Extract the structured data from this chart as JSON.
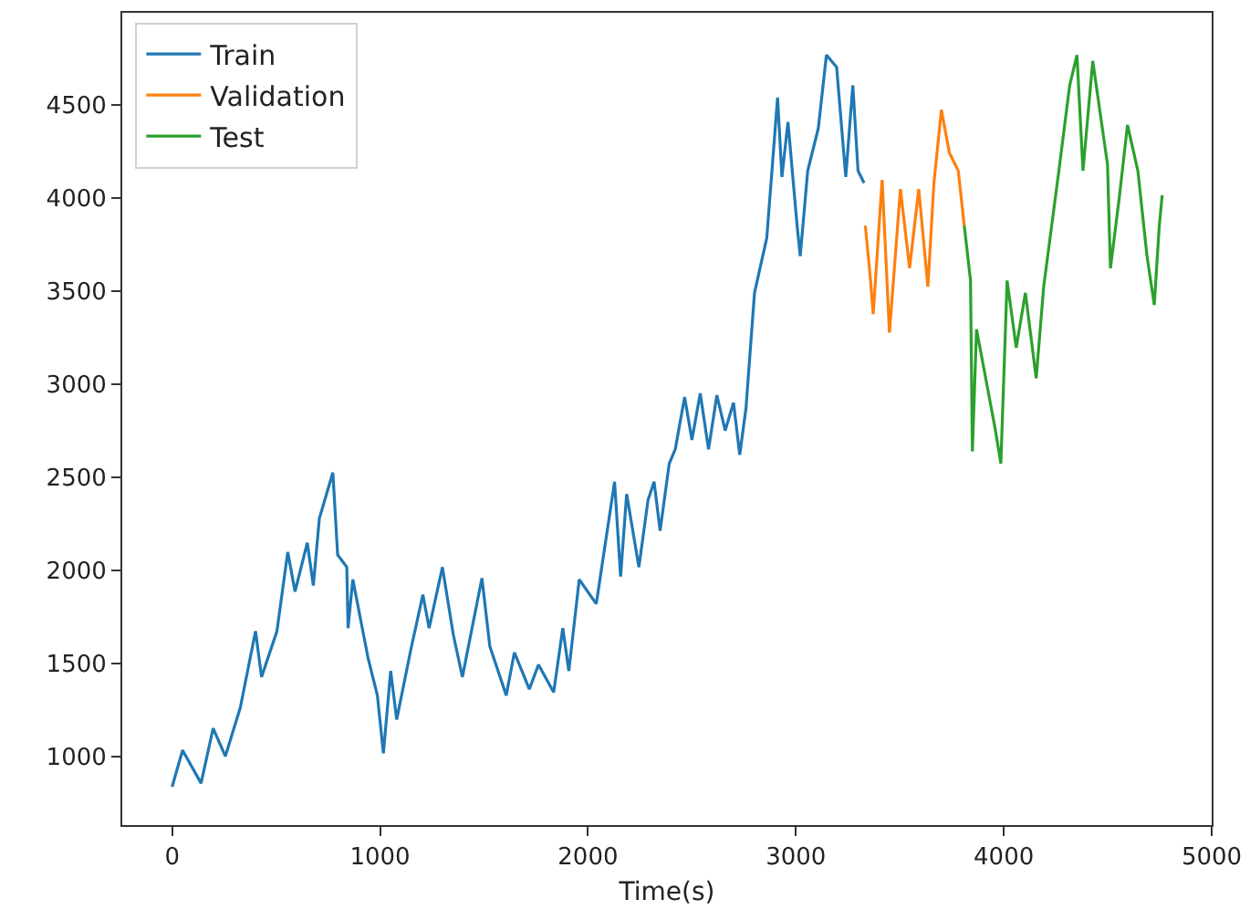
{
  "chart_data": {
    "type": "line",
    "xlabel": "Time(s)",
    "xlim": [
      -240,
      5000
    ],
    "xticks": [
      0,
      1000,
      2000,
      3000,
      4000,
      5000
    ],
    "ylim": [
      630,
      4995
    ],
    "yticks": [
      1000,
      1500,
      2000,
      2500,
      3000,
      3500,
      4000,
      4500
    ],
    "grid": false,
    "legend": "top left",
    "marker": "none",
    "line_style": "solid",
    "series": [
      {
        "name": "Train",
        "color": "#1f77b4",
        "x": [
          0,
          50,
          139,
          197,
          256,
          328,
          401,
          430,
          504,
          556,
          591,
          650,
          679,
          708,
          773,
          796,
          840,
          846,
          869,
          943,
          987,
          1016,
          1051,
          1080,
          1148,
          1206,
          1236,
          1300,
          1352,
          1396,
          1490,
          1528,
          1607,
          1646,
          1718,
          1762,
          1835,
          1879,
          1908,
          1958,
          2040,
          2128,
          2157,
          2186,
          2245,
          2289,
          2318,
          2347,
          2391,
          2420,
          2465,
          2500,
          2540,
          2580,
          2620,
          2660,
          2700,
          2730,
          2760,
          2801,
          2860,
          2912,
          2933,
          2962,
          3006,
          3021,
          3057,
          3108,
          3147,
          3196,
          3240,
          3274,
          3299,
          3328
        ],
        "values": [
          836,
          1032,
          855,
          1150,
          1000,
          1262,
          1672,
          1426,
          1672,
          2097,
          1885,
          2147,
          1917,
          2278,
          2524,
          2082,
          2016,
          1688,
          1950,
          1524,
          1327,
          1016,
          1458,
          1197,
          1573,
          1868,
          1688,
          2016,
          1655,
          1426,
          1957,
          1590,
          1327,
          1557,
          1360,
          1492,
          1344,
          1688,
          1458,
          1950,
          1819,
          2475,
          1966,
          2409,
          2016,
          2377,
          2475,
          2212,
          2573,
          2650,
          2930,
          2700,
          2950,
          2650,
          2940,
          2750,
          2900,
          2620,
          2870,
          3490,
          3785,
          4540,
          4113,
          4408,
          3851,
          3687,
          4146,
          4375,
          4768,
          4703,
          4113,
          4605,
          4146,
          4080
        ]
      },
      {
        "name": "Validation",
        "color": "#ff7f0e",
        "x": [
          3334,
          3357,
          3372,
          3415,
          3450,
          3503,
          3547,
          3591,
          3635,
          3664,
          3700,
          3738,
          3781,
          3810
        ],
        "values": [
          3851,
          3584,
          3376,
          4097,
          3277,
          4048,
          3622,
          4048,
          3523,
          4080,
          4474,
          4244,
          4146,
          3851
        ]
      },
      {
        "name": "Test",
        "color": "#2ca02c",
        "x": [
          3810,
          3840,
          3849,
          3869,
          3913,
          3957,
          3986,
          4016,
          4060,
          4104,
          4156,
          4192,
          4265,
          4317,
          4352,
          4381,
          4428,
          4499,
          4513,
          4557,
          4595,
          4645,
          4689,
          4724,
          4748,
          4762
        ],
        "values": [
          3851,
          3556,
          2638,
          3294,
          3031,
          2769,
          2573,
          3556,
          3195,
          3490,
          3031,
          3523,
          4146,
          4605,
          4768,
          4146,
          4736,
          4179,
          3622,
          4015,
          4392,
          4146,
          3687,
          3425,
          3851,
          4015
        ]
      }
    ]
  }
}
